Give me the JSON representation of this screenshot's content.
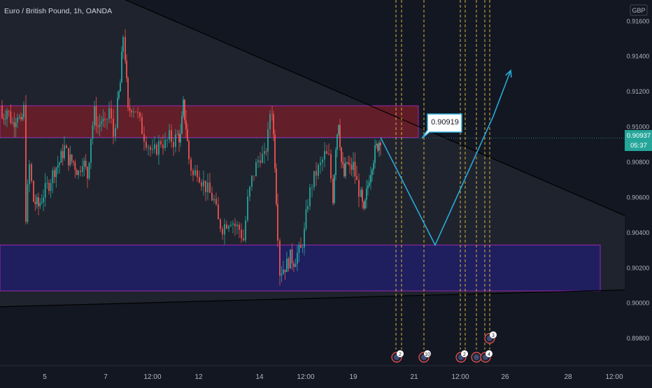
{
  "header": {
    "symbol_title": "Euro / British Pound, 1h, OANDA",
    "currency": "GBP"
  },
  "colors": {
    "background": "#131722",
    "up_candle": "#26a69a",
    "down_candle": "#ef5350",
    "resistance_zone": "#7a1e28",
    "support_zone": "#1f1d6b",
    "zone_border": "#9c27b0",
    "projection_line": "#29a9d6",
    "event_line": "#d4b13a",
    "price_tag": "#26a69a"
  },
  "chart_data": {
    "type": "line",
    "title": "Euro / British Pound, 1h, OANDA",
    "ylabel": "GBP",
    "ylim": [
      0.8965,
      0.9172
    ],
    "y_ticks": [
      "0.91600",
      "0.91400",
      "0.91200",
      "0.91000",
      "0.90800",
      "0.90600",
      "0.90400",
      "0.90200",
      "0.90000",
      "0.89800"
    ],
    "x_ticks": [
      "5",
      "7",
      "12:00",
      "12",
      "14",
      "12:00",
      "19",
      "21",
      "12:00",
      "26",
      "28",
      "12:00"
    ],
    "price_path": [
      {
        "x": 0,
        "y": 0.9112
      },
      {
        "x": 3,
        "y": 0.9105
      },
      {
        "x": 10,
        "y": 0.911
      },
      {
        "x": 18,
        "y": 0.9102
      },
      {
        "x": 25,
        "y": 0.9108
      },
      {
        "x": 30,
        "y": 0.91
      },
      {
        "x": 34,
        "y": 0.911
      },
      {
        "x": 37,
        "y": 0.905
      },
      {
        "x": 42,
        "y": 0.9078
      },
      {
        "x": 48,
        "y": 0.9058
      },
      {
        "x": 55,
        "y": 0.9055
      },
      {
        "x": 62,
        "y": 0.9062
      },
      {
        "x": 70,
        "y": 0.9068
      },
      {
        "x": 78,
        "y": 0.9076
      },
      {
        "x": 85,
        "y": 0.908
      },
      {
        "x": 92,
        "y": 0.9088
      },
      {
        "x": 98,
        "y": 0.9082
      },
      {
        "x": 105,
        "y": 0.908
      },
      {
        "x": 112,
        "y": 0.9074
      },
      {
        "x": 118,
        "y": 0.9082
      },
      {
        "x": 125,
        "y": 0.9072
      },
      {
        "x": 130,
        "y": 0.9095
      },
      {
        "x": 135,
        "y": 0.9108
      },
      {
        "x": 140,
        "y": 0.91
      },
      {
        "x": 145,
        "y": 0.9104
      },
      {
        "x": 150,
        "y": 0.91
      },
      {
        "x": 156,
        "y": 0.911
      },
      {
        "x": 162,
        "y": 0.9095
      },
      {
        "x": 168,
        "y": 0.9112
      },
      {
        "x": 172,
        "y": 0.9125
      },
      {
        "x": 176,
        "y": 0.9152
      },
      {
        "x": 179,
        "y": 0.914
      },
      {
        "x": 183,
        "y": 0.9108
      },
      {
        "x": 188,
        "y": 0.9112
      },
      {
        "x": 194,
        "y": 0.911
      },
      {
        "x": 200,
        "y": 0.9102
      },
      {
        "x": 206,
        "y": 0.9095
      },
      {
        "x": 212,
        "y": 0.909
      },
      {
        "x": 218,
        "y": 0.9084
      },
      {
        "x": 224,
        "y": 0.9088
      },
      {
        "x": 230,
        "y": 0.9092
      },
      {
        "x": 236,
        "y": 0.909
      },
      {
        "x": 242,
        "y": 0.9094
      },
      {
        "x": 248,
        "y": 0.9092
      },
      {
        "x": 254,
        "y": 0.9095
      },
      {
        "x": 258,
        "y": 0.9094
      },
      {
        "x": 262,
        "y": 0.9112
      },
      {
        "x": 266,
        "y": 0.91
      },
      {
        "x": 270,
        "y": 0.9082
      },
      {
        "x": 276,
        "y": 0.9072
      },
      {
        "x": 282,
        "y": 0.9076
      },
      {
        "x": 288,
        "y": 0.907
      },
      {
        "x": 294,
        "y": 0.9066
      },
      {
        "x": 300,
        "y": 0.9062
      },
      {
        "x": 306,
        "y": 0.9058
      },
      {
        "x": 312,
        "y": 0.9046
      },
      {
        "x": 318,
        "y": 0.9043
      },
      {
        "x": 324,
        "y": 0.9046
      },
      {
        "x": 330,
        "y": 0.9048
      },
      {
        "x": 336,
        "y": 0.9044
      },
      {
        "x": 342,
        "y": 0.9042
      },
      {
        "x": 348,
        "y": 0.9036
      },
      {
        "x": 354,
        "y": 0.9058
      },
      {
        "x": 360,
        "y": 0.907
      },
      {
        "x": 366,
        "y": 0.9078
      },
      {
        "x": 372,
        "y": 0.9084
      },
      {
        "x": 378,
        "y": 0.9082
      },
      {
        "x": 383,
        "y": 0.9095
      },
      {
        "x": 386,
        "y": 0.9108
      },
      {
        "x": 389,
        "y": 0.911
      },
      {
        "x": 393,
        "y": 0.908
      },
      {
        "x": 397,
        "y": 0.904
      },
      {
        "x": 400,
        "y": 0.9018
      },
      {
        "x": 405,
        "y": 0.902
      },
      {
        "x": 410,
        "y": 0.9022
      },
      {
        "x": 415,
        "y": 0.9026
      },
      {
        "x": 420,
        "y": 0.9024
      },
      {
        "x": 425,
        "y": 0.9028
      },
      {
        "x": 430,
        "y": 0.903
      },
      {
        "x": 435,
        "y": 0.904
      },
      {
        "x": 440,
        "y": 0.9058
      },
      {
        "x": 446,
        "y": 0.9068
      },
      {
        "x": 452,
        "y": 0.9074
      },
      {
        "x": 458,
        "y": 0.9078
      },
      {
        "x": 464,
        "y": 0.9084
      },
      {
        "x": 470,
        "y": 0.9082
      },
      {
        "x": 476,
        "y": 0.906
      },
      {
        "x": 480,
        "y": 0.909
      },
      {
        "x": 484,
        "y": 0.9104
      },
      {
        "x": 488,
        "y": 0.908
      },
      {
        "x": 492,
        "y": 0.9072
      },
      {
        "x": 496,
        "y": 0.908
      },
      {
        "x": 500,
        "y": 0.9076
      },
      {
        "x": 505,
        "y": 0.9078
      },
      {
        "x": 510,
        "y": 0.9068
      },
      {
        "x": 516,
        "y": 0.906
      },
      {
        "x": 520,
        "y": 0.905
      },
      {
        "x": 524,
        "y": 0.9062
      },
      {
        "x": 528,
        "y": 0.9072
      },
      {
        "x": 532,
        "y": 0.908
      },
      {
        "x": 536,
        "y": 0.9086
      },
      {
        "x": 540,
        "y": 0.909
      },
      {
        "x": 544,
        "y": 0.9094
      }
    ],
    "resistance_zone": {
      "top": 0.9112,
      "bottom": 0.9094
    },
    "support_zone": {
      "top": 0.9033,
      "bottom": 0.9007
    },
    "descending_trendline": [
      {
        "x": 110,
        "y": 0.9184
      },
      {
        "x": 932,
        "y": 0.9043
      }
    ],
    "ascending_trendline": [
      {
        "x": 0,
        "y": 0.8998
      },
      {
        "x": 932,
        "y": 0.9008
      }
    ],
    "projection_path": [
      {
        "x": 544,
        "y": 0.9094
      },
      {
        "x": 622,
        "y": 0.9033
      },
      {
        "x": 705,
        "y": 0.9106
      },
      {
        "x": 730,
        "y": 0.9132
      }
    ],
    "current_price": "0.90937",
    "countdown": "05:37",
    "annotation_value": "0.90919",
    "event_lines_x": [
      566,
      574,
      606,
      658,
      665,
      681,
      693,
      700
    ],
    "event_badges": [
      {
        "x": 570,
        "label": "2"
      },
      {
        "x": 609,
        "label": "10"
      },
      {
        "x": 662,
        "label": "2"
      },
      {
        "x": 684,
        "label": ""
      },
      {
        "x": 697,
        "label": "4"
      },
      {
        "x": 703,
        "label": "3",
        "raised": true
      }
    ]
  }
}
